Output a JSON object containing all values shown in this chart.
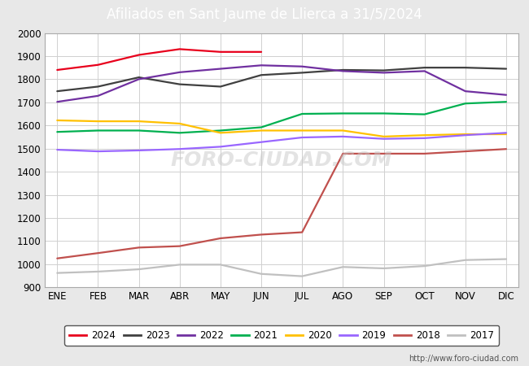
{
  "title": "Afiliados en Sant Jaume de Llierca a 31/5/2024",
  "title_bg_color": "#5b9bd5",
  "title_text_color": "white",
  "ylim": [
    900,
    2000
  ],
  "yticks": [
    900,
    1000,
    1100,
    1200,
    1300,
    1400,
    1500,
    1600,
    1700,
    1800,
    1900,
    2000
  ],
  "months": [
    "ENE",
    "FEB",
    "MAR",
    "ABR",
    "MAY",
    "JUN",
    "JUL",
    "AGO",
    "SEP",
    "OCT",
    "NOV",
    "DIC"
  ],
  "series": {
    "2024": {
      "color": "#e8001c",
      "data": [
        1840,
        1862,
        1905,
        1930,
        1918,
        1918,
        null,
        null,
        null,
        null,
        null,
        null
      ]
    },
    "2023": {
      "color": "#404040",
      "data": [
        1748,
        1768,
        1808,
        1778,
        1768,
        1818,
        1828,
        1840,
        1838,
        1850,
        1850,
        1845
      ]
    },
    "2022": {
      "color": "#7030a0",
      "data": [
        1702,
        1728,
        1800,
        1830,
        1845,
        1860,
        1855,
        1835,
        1828,
        1835,
        1748,
        1732
      ]
    },
    "2021": {
      "color": "#00b050",
      "data": [
        1572,
        1578,
        1578,
        1568,
        1578,
        1592,
        1650,
        1652,
        1652,
        1648,
        1695,
        1702
      ]
    },
    "2020": {
      "color": "#ffc000",
      "data": [
        1622,
        1618,
        1618,
        1608,
        1568,
        1578,
        1578,
        1578,
        1552,
        1558,
        1562,
        1562
      ]
    },
    "2019": {
      "color": "#9966ff",
      "data": [
        1495,
        1488,
        1492,
        1498,
        1508,
        1528,
        1548,
        1552,
        1542,
        1545,
        1558,
        1568
      ]
    },
    "2018": {
      "color": "#c0504d",
      "data": [
        1025,
        1048,
        1072,
        1078,
        1112,
        1128,
        1138,
        1478,
        1478,
        1478,
        1488,
        1498
      ]
    },
    "2017": {
      "color": "#c0c0c0",
      "data": [
        962,
        968,
        978,
        998,
        998,
        958,
        948,
        988,
        982,
        992,
        1018,
        1022
      ]
    }
  },
  "watermark": "FORO-CIUDAD.COM",
  "url": "http://www.foro-ciudad.com",
  "background_color": "#e8e8e8",
  "plot_background": "white",
  "grid_color": "#d0d0d0",
  "legend_edge_color": "#555555"
}
